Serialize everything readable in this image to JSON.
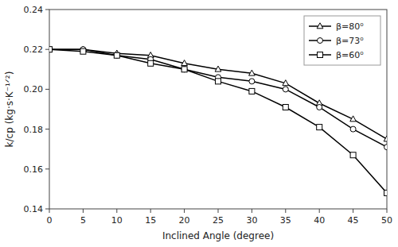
{
  "chart_data": {
    "type": "line",
    "x_label": "Inclined Angle (degree)",
    "y_label": "k/cp (kg·s·K⁻¹ᐟ²)",
    "x": [
      0,
      5,
      10,
      15,
      20,
      25,
      30,
      35,
      40,
      45,
      50
    ],
    "series": [
      {
        "name": "β=80⁰",
        "color": "#000000",
        "marker": "triangle",
        "values": [
          0.22,
          0.22,
          0.218,
          0.217,
          0.213,
          0.21,
          0.208,
          0.203,
          0.193,
          0.185,
          0.175
        ]
      },
      {
        "name": "β=73⁰",
        "color": "#000000",
        "marker": "circle",
        "values": [
          0.22,
          0.22,
          0.217,
          0.215,
          0.21,
          0.206,
          0.204,
          0.2,
          0.191,
          0.18,
          0.171
        ]
      },
      {
        "name": "β=60⁰",
        "color": "#000000",
        "marker": "square",
        "values": [
          0.22,
          0.219,
          0.217,
          0.213,
          0.21,
          0.204,
          0.199,
          0.191,
          0.181,
          0.167,
          0.148
        ]
      }
    ],
    "xlim": [
      0,
      50
    ],
    "ylim": [
      0.14,
      0.24
    ],
    "xticks": [
      0,
      5,
      10,
      15,
      20,
      25,
      30,
      35,
      40,
      45,
      50
    ],
    "yticks": [
      0.14,
      0.16,
      0.18,
      {
        "value": 0.2,
        "label": "0.20"
      },
      0.22,
      0.24
    ],
    "grid": false,
    "legend": "upper right"
  }
}
